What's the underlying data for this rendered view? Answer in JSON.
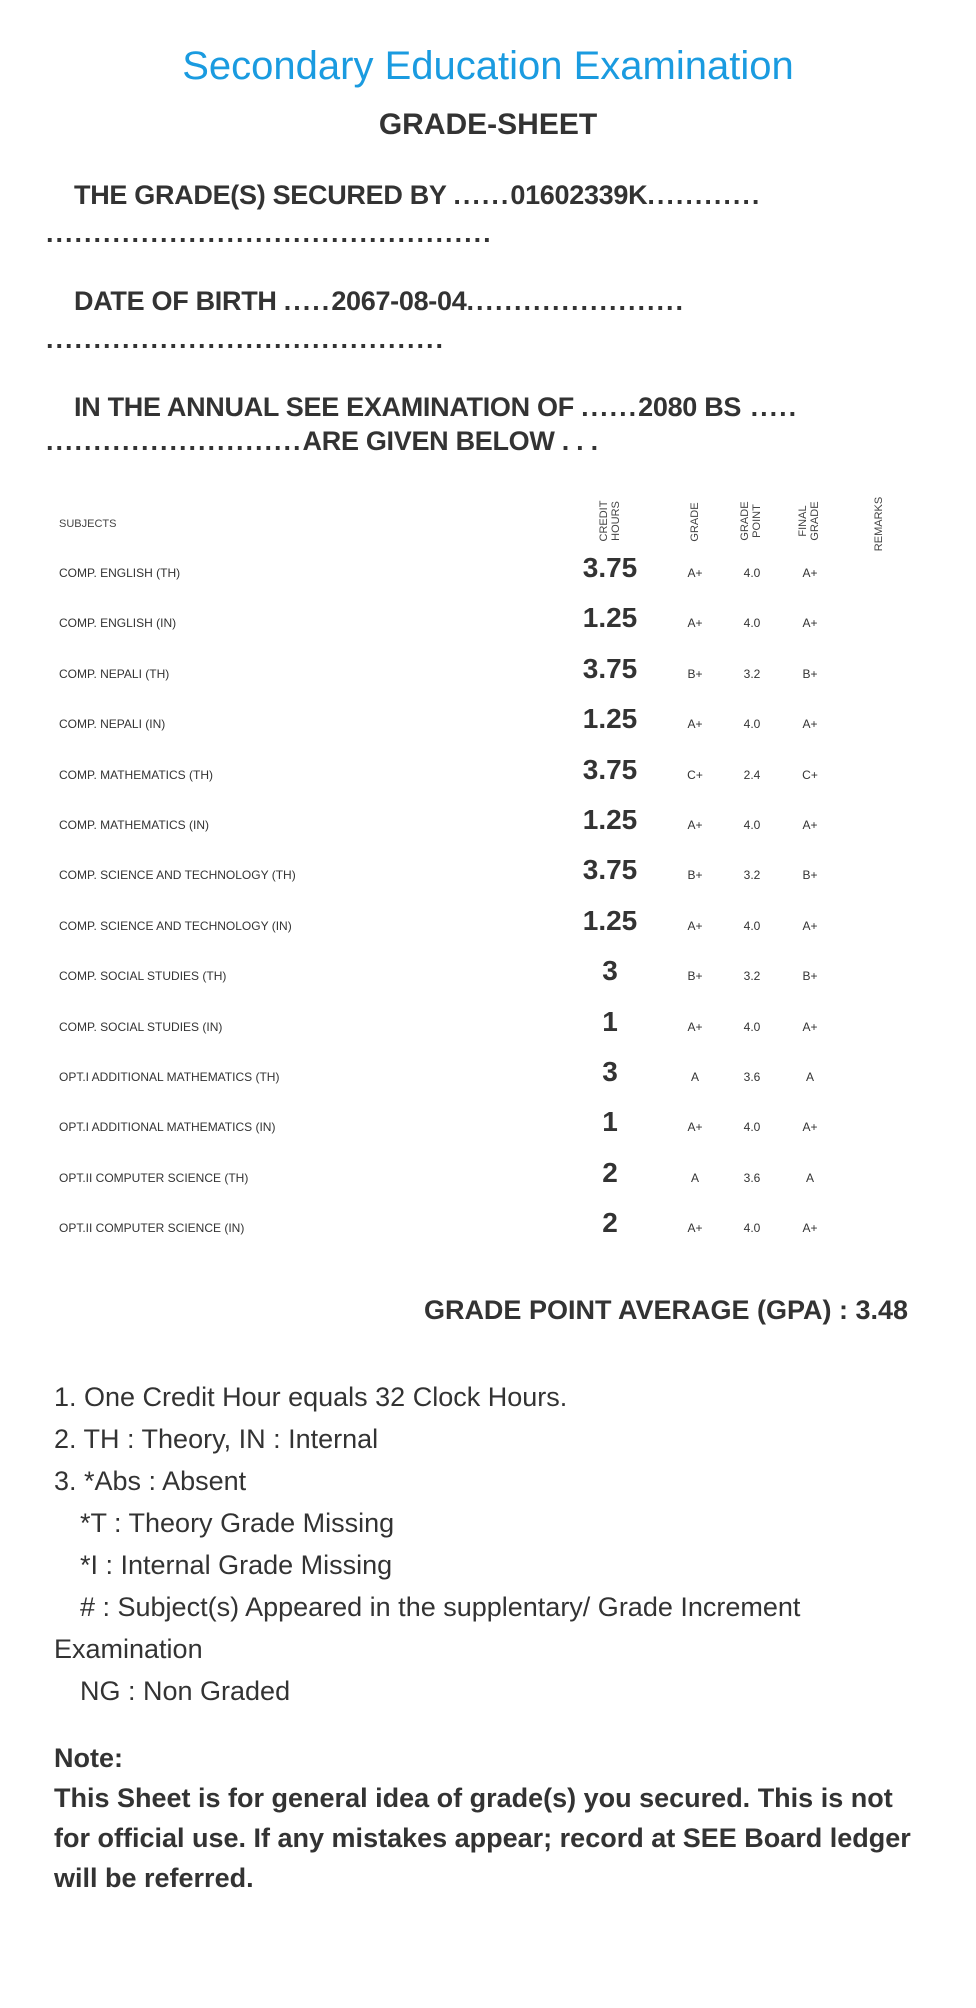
{
  "header": {
    "title": "Secondary Education Examination",
    "subtitle": "GRADE-SHEET"
  },
  "student": {
    "secured_by_label": "THE GRADE(S) SECURED BY",
    "symbol_number": "01602339K",
    "dob_label": "DATE OF BIRTH",
    "dob": "2067-08-04",
    "exam_label": "IN THE ANNUAL SEE EXAMINATION OF",
    "exam_year": "2080 BS",
    "given_below": "ARE GIVEN BELOW . . ."
  },
  "table": {
    "headers": {
      "subjects": "SUBJECTS",
      "credit_hours": "CREDIT HOURS",
      "grade": "GRADE",
      "grade_point": "GRADE POINT",
      "final_grade": "FINAL GRADE",
      "remarks": "REMARKS"
    },
    "rows": [
      {
        "subject": "COMP. ENGLISH (TH)",
        "credit": "3.75",
        "grade": "A+",
        "point": "4.0",
        "final": "A+"
      },
      {
        "subject": "COMP. ENGLISH (IN)",
        "credit": "1.25",
        "grade": "A+",
        "point": "4.0",
        "final": "A+"
      },
      {
        "subject": "COMP. NEPALI (TH)",
        "credit": "3.75",
        "grade": "B+",
        "point": "3.2",
        "final": "B+"
      },
      {
        "subject": "COMP. NEPALI (IN)",
        "credit": "1.25",
        "grade": "A+",
        "point": "4.0",
        "final": "A+"
      },
      {
        "subject": "COMP. MATHEMATICS (TH)",
        "credit": "3.75",
        "grade": "C+",
        "point": "2.4",
        "final": "C+"
      },
      {
        "subject": "COMP. MATHEMATICS (IN)",
        "credit": "1.25",
        "grade": "A+",
        "point": "4.0",
        "final": "A+"
      },
      {
        "subject": "COMP. SCIENCE AND TECHNOLOGY (TH)",
        "credit": "3.75",
        "grade": "B+",
        "point": "3.2",
        "final": "B+"
      },
      {
        "subject": "COMP. SCIENCE AND TECHNOLOGY (IN)",
        "credit": "1.25",
        "grade": "A+",
        "point": "4.0",
        "final": "A+"
      },
      {
        "subject": "COMP. SOCIAL STUDIES (TH)",
        "credit": "3",
        "grade": "B+",
        "point": "3.2",
        "final": "B+"
      },
      {
        "subject": "COMP. SOCIAL STUDIES (IN)",
        "credit": "1",
        "grade": "A+",
        "point": "4.0",
        "final": "A+"
      },
      {
        "subject": "OPT.I ADDITIONAL MATHEMATICS (TH)",
        "credit": "3",
        "grade": "A",
        "point": "3.6",
        "final": "A"
      },
      {
        "subject": "OPT.I ADDITIONAL MATHEMATICS (IN)",
        "credit": "1",
        "grade": "A+",
        "point": "4.0",
        "final": "A+"
      },
      {
        "subject": "OPT.II COMPUTER SCIENCE (TH)",
        "credit": "2",
        "grade": "A",
        "point": "3.6",
        "final": "A"
      },
      {
        "subject": "OPT.II COMPUTER SCIENCE (IN)",
        "credit": "2",
        "grade": "A+",
        "point": "4.0",
        "final": "A+"
      }
    ]
  },
  "gpa": "GRADE POINT AVERAGE (GPA) : 3.48",
  "notes": [
    "1. One Credit Hour equals 32 Clock Hours.",
    "2. TH : Theory, IN : Internal",
    "3. *Abs : Absent",
    "*T : Theory Grade Missing",
    "*I : Internal Grade Missing",
    "# : Subject(s) Appeared in the supplentary/ Grade Increment",
    "Examination",
    "NG : Non Graded"
  ],
  "footnote": {
    "label": "Note:",
    "text": "This Sheet is for general idea of grade(s) you secured. This is not for official use. If any mistakes appear; record at SEE Board ledger will be referred."
  },
  "colors": {
    "title": "#1a9be0",
    "text": "#333333"
  }
}
